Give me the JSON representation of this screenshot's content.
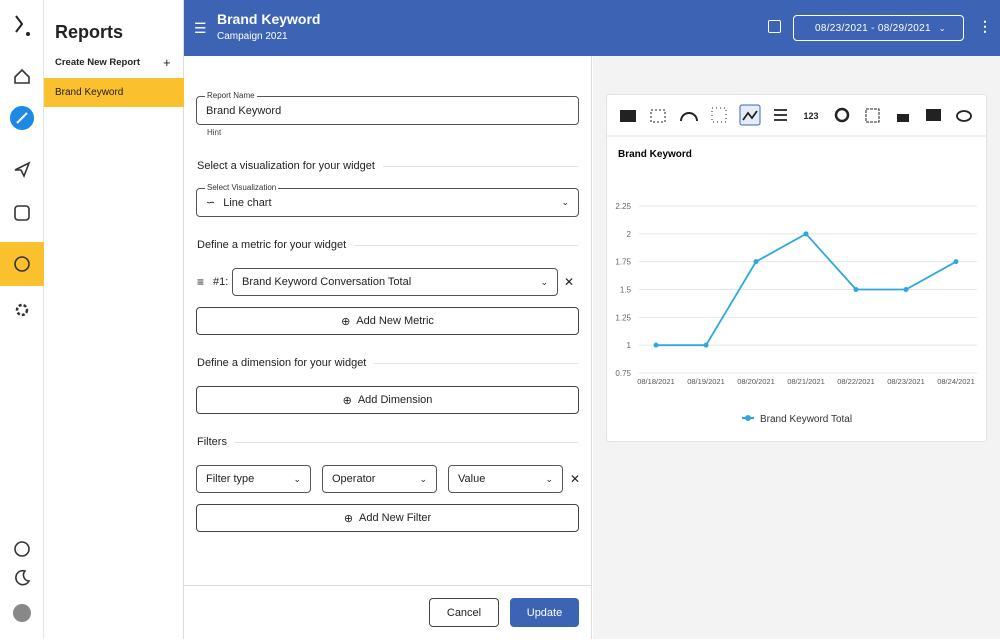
{
  "sidebar": {
    "title": "Reports",
    "create": "Create New Report",
    "items": [
      "Brand Keyword"
    ]
  },
  "header": {
    "title": "Brand Keyword",
    "subtitle": "Campaign 2021",
    "date_range": "08/23/2021 - 08/29/2021"
  },
  "form": {
    "report_name_label": "Report Name",
    "report_name": "Brand Keyword",
    "hint": "Hint",
    "viz_section": "Select a visualization for your widget",
    "viz_label": "Select Visualization",
    "viz_value": "Line chart",
    "metric_section": "Define a metric for your widget",
    "metric_index": "#1:",
    "metric_value": "Brand Keyword Conversation Total",
    "add_metric": "Add New Metric",
    "dimension_section": "Define a dimension for your widget",
    "add_dimension": "Add Dimension",
    "filters_section": "Filters",
    "filter_type": "Filter type",
    "operator": "Operator",
    "value": "Value",
    "add_filter": "Add New Filter",
    "cancel": "Cancel",
    "update": "Update"
  },
  "toolbar": {
    "number_icon": "123"
  },
  "chart_data": {
    "type": "line",
    "title": "Brand Keyword",
    "categories": [
      "08/18/2021",
      "08/19/2021",
      "08/20/2021",
      "08/21/2021",
      "08/22/2021",
      "08/23/2021",
      "08/24/2021"
    ],
    "series": [
      {
        "name": "Brand Keyword Total",
        "color": "#2ea7e0",
        "values": [
          1,
          1,
          1.75,
          2,
          1.5,
          1.5,
          1.75
        ]
      }
    ],
    "ylim": [
      0.75,
      2.25
    ],
    "yticks": [
      0.75,
      1,
      1.25,
      1.5,
      1.75,
      2,
      2.25
    ],
    "grid": true,
    "legend": "bottom"
  }
}
